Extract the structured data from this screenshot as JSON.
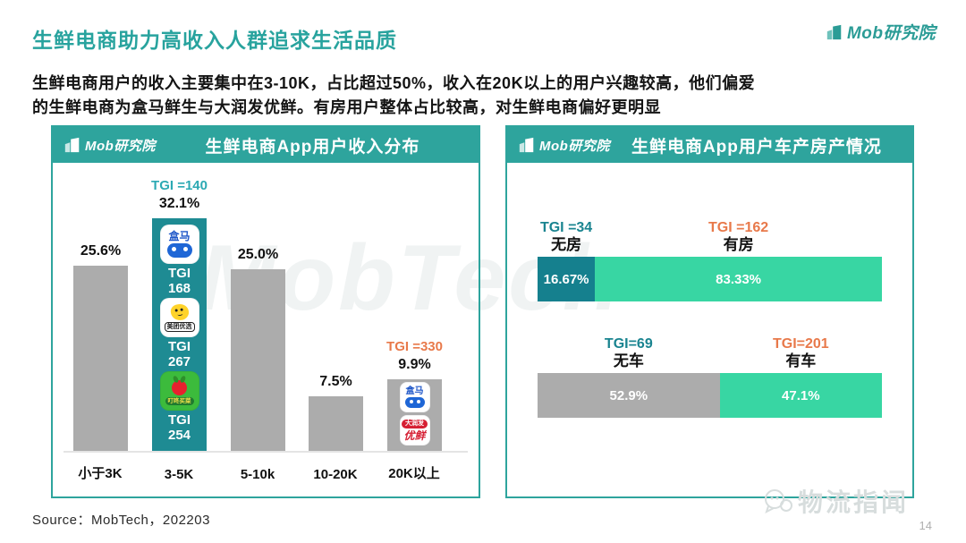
{
  "page": {
    "title": "生鲜电商助力高收入人群追求生活品质",
    "intro_line1": "生鲜电商用户的收入主要集中在3-10K，占比超过50%，收入在20K以上的用户兴趣较高，他们偏爱",
    "intro_line2": "的生鲜电商为盒马鲜生与大润发优鲜。有房用户整体占比较高，对生鲜电商偏好更明显",
    "brand": "Mob研究院",
    "source": "Source：MobTech，202203",
    "page_number": "14",
    "watermark_center": "MobTech",
    "watermark_bottom": "物流指闻"
  },
  "colors": {
    "teal_header": "#2EA49D",
    "teal_bar": "#1E8B93",
    "dark_teal_segment": "#15808E",
    "mint_segment": "#38D6A3",
    "orange_tgi": "#E8794A",
    "teal_tgi": "#2BA9B3",
    "gray_bar": "#ACACAC",
    "title_teal": "#28A39E"
  },
  "icons": {
    "hema": {
      "text": "盒马"
    },
    "meituan": {
      "text": "美团优选"
    },
    "dingdong": {
      "text": "叮咚买菜"
    },
    "darunfa": {
      "line1": "大润发",
      "line2": "优鲜"
    }
  },
  "left_chart": {
    "title": "生鲜电商App用户收入分布",
    "bars": [
      {
        "label": "小于3K",
        "value": 25.6,
        "value_label": "25.6%"
      },
      {
        "label": "3-5K",
        "value": 32.1,
        "value_label": "32.1%",
        "tgi_label": "TGI =140",
        "apps": [
          {
            "name": "盒马",
            "tgi_word": "TGI",
            "tgi_value": "168"
          },
          {
            "name": "美团优选",
            "tgi_word": "TGI",
            "tgi_value": "267"
          },
          {
            "name": "叮咚买菜",
            "tgi_word": "TGI",
            "tgi_value": "254"
          }
        ]
      },
      {
        "label": "5-10k",
        "value": 25.0,
        "value_label": "25.0%"
      },
      {
        "label": "10-20K",
        "value": 7.5,
        "value_label": "7.5%"
      },
      {
        "label": "20K以上",
        "value": 9.9,
        "value_label": "9.9%",
        "tgi_label": "TGI =330",
        "apps": [
          {
            "name": "盒马"
          },
          {
            "name": "大润发优鲜"
          }
        ]
      }
    ]
  },
  "right_chart": {
    "title": "生鲜电商App用户车产房产情况",
    "rows": [
      {
        "segments": [
          {
            "tgi": "TGI =34",
            "label": "无房",
            "value": 16.67,
            "value_label": "16.67%"
          },
          {
            "tgi": "TGI =162",
            "label": "有房",
            "value": 83.33,
            "value_label": "83.33%"
          }
        ]
      },
      {
        "segments": [
          {
            "tgi": "TGI=69",
            "label": "无车",
            "value": 52.9,
            "value_label": "52.9%"
          },
          {
            "tgi": "TGI=201",
            "label": "有车",
            "value": 47.1,
            "value_label": "47.1%"
          }
        ]
      }
    ]
  },
  "chart_data": [
    {
      "type": "bar",
      "title": "生鲜电商App用户收入分布",
      "categories": [
        "小于3K",
        "3-5K",
        "5-10k",
        "10-20K",
        "20K以上"
      ],
      "values": [
        25.6,
        32.1,
        25.0,
        7.5,
        9.9
      ],
      "unit": "percent",
      "ylim": [
        0,
        35
      ],
      "grid": false,
      "highlighted_bars": [
        {
          "category": "3-5K",
          "tgi_label": "TGI =140",
          "apps": [
            {
              "app": "盒马",
              "tgi": 168
            },
            {
              "app": "美团优选",
              "tgi": 267
            },
            {
              "app": "叮咚买菜",
              "tgi": 254
            }
          ]
        },
        {
          "category": "20K以上",
          "tgi_label": "TGI =330",
          "apps": [
            {
              "app": "盒马"
            },
            {
              "app": "大润发优鲜"
            }
          ]
        }
      ]
    },
    {
      "type": "bar",
      "subtype": "horizontal-stacked",
      "title": "生鲜电商App用户车产房产情况",
      "unit": "percent",
      "rows": [
        {
          "categories": [
            "无房",
            "有房"
          ],
          "values": [
            16.67,
            83.33
          ],
          "tgi": [
            34,
            162
          ]
        },
        {
          "categories": [
            "无车",
            "有车"
          ],
          "values": [
            52.9,
            47.1
          ],
          "tgi": [
            69,
            201
          ]
        }
      ]
    }
  ]
}
